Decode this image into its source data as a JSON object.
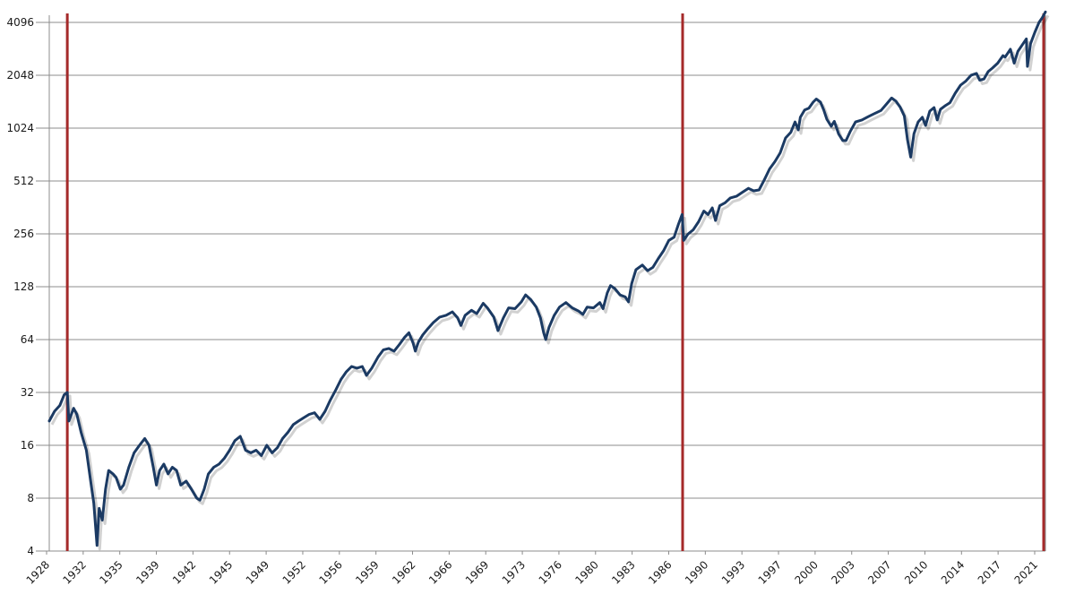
{
  "chart_data": {
    "type": "line",
    "title": "",
    "xlabel": "",
    "ylabel": "",
    "y_scale": "log2",
    "ylim": [
      4,
      4096
    ],
    "xlim": [
      1928.0,
      2021.9
    ],
    "grid": true,
    "y_ticks": [
      {
        "value": 4,
        "label": "4"
      },
      {
        "value": 8,
        "label": "8"
      },
      {
        "value": 16,
        "label": "16"
      },
      {
        "value": 32,
        "label": "32"
      },
      {
        "value": 64,
        "label": "64"
      },
      {
        "value": 128,
        "label": "128"
      },
      {
        "value": 256,
        "label": "256"
      },
      {
        "value": 512,
        "label": "512"
      },
      {
        "value": 1024,
        "label": "1024"
      },
      {
        "value": 2048,
        "label": "2048"
      },
      {
        "value": 4096,
        "label": "4096"
      }
    ],
    "x_ticks": [
      "1928",
      "1932",
      "1935",
      "1939",
      "1942",
      "1945",
      "1949",
      "1952",
      "1956",
      "1959",
      "1962",
      "1966",
      "1969",
      "1973",
      "1976",
      "1980",
      "1983",
      "1986",
      "1990",
      "1993",
      "1997",
      "2000",
      "2003",
      "2007",
      "2010",
      "2014",
      "2017",
      "2021"
    ],
    "colors": {
      "series": "#1b3a63",
      "markers": "#a52a2a"
    },
    "vertical_markers": [
      1929.7,
      1987.7,
      2021.9
    ],
    "series": [
      {
        "values": [
          [
            1928.0,
            22
          ],
          [
            1928.5,
            25
          ],
          [
            1929.0,
            27
          ],
          [
            1929.4,
            31
          ],
          [
            1929.7,
            32
          ],
          [
            1929.85,
            22
          ],
          [
            1930.3,
            26
          ],
          [
            1930.6,
            24
          ],
          [
            1931.0,
            19
          ],
          [
            1931.5,
            15
          ],
          [
            1931.9,
            10
          ],
          [
            1932.2,
            7.5
          ],
          [
            1932.5,
            4.3
          ],
          [
            1932.7,
            7
          ],
          [
            1933.0,
            6
          ],
          [
            1933.3,
            9
          ],
          [
            1933.6,
            11.5
          ],
          [
            1934.0,
            11
          ],
          [
            1934.3,
            10.5
          ],
          [
            1934.7,
            9
          ],
          [
            1935.0,
            9.5
          ],
          [
            1935.5,
            12
          ],
          [
            1936.0,
            14.5
          ],
          [
            1936.5,
            16
          ],
          [
            1937.0,
            17.5
          ],
          [
            1937.4,
            16
          ],
          [
            1937.8,
            12
          ],
          [
            1938.1,
            9.5
          ],
          [
            1938.4,
            11.5
          ],
          [
            1938.8,
            12.5
          ],
          [
            1939.2,
            11
          ],
          [
            1939.6,
            12
          ],
          [
            1940.0,
            11.5
          ],
          [
            1940.4,
            9.5
          ],
          [
            1940.9,
            10
          ],
          [
            1941.4,
            9
          ],
          [
            1941.9,
            8
          ],
          [
            1942.2,
            7.8
          ],
          [
            1942.6,
            9
          ],
          [
            1943.0,
            11
          ],
          [
            1943.5,
            12
          ],
          [
            1944.0,
            12.5
          ],
          [
            1944.5,
            13.5
          ],
          [
            1945.0,
            15
          ],
          [
            1945.5,
            17
          ],
          [
            1946.0,
            18
          ],
          [
            1946.5,
            15
          ],
          [
            1947.0,
            14.5
          ],
          [
            1947.5,
            15
          ],
          [
            1948.0,
            14
          ],
          [
            1948.5,
            16
          ],
          [
            1949.0,
            14.5
          ],
          [
            1949.5,
            15.5
          ],
          [
            1950.0,
            17.5
          ],
          [
            1950.5,
            19
          ],
          [
            1951.0,
            21
          ],
          [
            1951.5,
            22
          ],
          [
            1952.0,
            23
          ],
          [
            1952.5,
            24
          ],
          [
            1953.0,
            24.5
          ],
          [
            1953.5,
            22.5
          ],
          [
            1954.0,
            25
          ],
          [
            1954.5,
            29
          ],
          [
            1955.0,
            33
          ],
          [
            1955.5,
            38
          ],
          [
            1956.0,
            42
          ],
          [
            1956.5,
            45
          ],
          [
            1957.0,
            44
          ],
          [
            1957.5,
            45
          ],
          [
            1957.9,
            40
          ],
          [
            1958.4,
            44
          ],
          [
            1959.0,
            51
          ],
          [
            1959.5,
            56
          ],
          [
            1960.0,
            57
          ],
          [
            1960.5,
            55
          ],
          [
            1961.0,
            60
          ],
          [
            1961.5,
            66
          ],
          [
            1961.9,
            70
          ],
          [
            1962.3,
            61
          ],
          [
            1962.5,
            55
          ],
          [
            1962.8,
            62
          ],
          [
            1963.2,
            68
          ],
          [
            1963.7,
            74
          ],
          [
            1964.2,
            80
          ],
          [
            1964.8,
            86
          ],
          [
            1965.4,
            88
          ],
          [
            1966.0,
            92
          ],
          [
            1966.5,
            85
          ],
          [
            1966.8,
            77
          ],
          [
            1967.2,
            88
          ],
          [
            1967.8,
            94
          ],
          [
            1968.3,
            90
          ],
          [
            1968.9,
            103
          ],
          [
            1969.3,
            97
          ],
          [
            1969.9,
            86
          ],
          [
            1970.3,
            72
          ],
          [
            1970.8,
            85
          ],
          [
            1971.3,
            97
          ],
          [
            1971.9,
            96
          ],
          [
            1972.5,
            105
          ],
          [
            1972.9,
            115
          ],
          [
            1973.4,
            108
          ],
          [
            1973.9,
            98
          ],
          [
            1974.3,
            85
          ],
          [
            1974.6,
            70
          ],
          [
            1974.8,
            64
          ],
          [
            1975.1,
            75
          ],
          [
            1975.6,
            88
          ],
          [
            1976.1,
            98
          ],
          [
            1976.7,
            104
          ],
          [
            1977.3,
            97
          ],
          [
            1977.9,
            93
          ],
          [
            1978.3,
            89
          ],
          [
            1978.7,
            98
          ],
          [
            1979.3,
            97
          ],
          [
            1979.9,
            104
          ],
          [
            1980.2,
            96
          ],
          [
            1980.6,
            118
          ],
          [
            1980.9,
            130
          ],
          [
            1981.3,
            125
          ],
          [
            1981.8,
            115
          ],
          [
            1982.3,
            112
          ],
          [
            1982.6,
            105
          ],
          [
            1982.9,
            133
          ],
          [
            1983.3,
            160
          ],
          [
            1983.9,
            170
          ],
          [
            1984.4,
            158
          ],
          [
            1984.9,
            165
          ],
          [
            1985.4,
            185
          ],
          [
            1985.9,
            205
          ],
          [
            1986.4,
            235
          ],
          [
            1986.9,
            245
          ],
          [
            1987.3,
            290
          ],
          [
            1987.65,
            330
          ],
          [
            1987.8,
            235
          ],
          [
            1988.2,
            255
          ],
          [
            1988.7,
            270
          ],
          [
            1989.2,
            300
          ],
          [
            1989.7,
            345
          ],
          [
            1990.1,
            330
          ],
          [
            1990.5,
            360
          ],
          [
            1990.8,
            305
          ],
          [
            1991.2,
            370
          ],
          [
            1991.7,
            385
          ],
          [
            1992.2,
            410
          ],
          [
            1992.8,
            420
          ],
          [
            1993.3,
            440
          ],
          [
            1993.9,
            465
          ],
          [
            1994.4,
            450
          ],
          [
            1994.9,
            455
          ],
          [
            1995.4,
            520
          ],
          [
            1995.9,
            600
          ],
          [
            1996.4,
            660
          ],
          [
            1996.9,
            740
          ],
          [
            1997.4,
            900
          ],
          [
            1997.9,
            970
          ],
          [
            1998.3,
            1110
          ],
          [
            1998.6,
            1000
          ],
          [
            1998.8,
            1180
          ],
          [
            1999.2,
            1300
          ],
          [
            1999.6,
            1330
          ],
          [
            2000.0,
            1440
          ],
          [
            2000.3,
            1500
          ],
          [
            2000.7,
            1440
          ],
          [
            2001.0,
            1300
          ],
          [
            2001.3,
            1150
          ],
          [
            2001.7,
            1050
          ],
          [
            2002.0,
            1120
          ],
          [
            2002.4,
            950
          ],
          [
            2002.8,
            870
          ],
          [
            2003.1,
            870
          ],
          [
            2003.5,
            980
          ],
          [
            2004.0,
            1110
          ],
          [
            2004.6,
            1140
          ],
          [
            2005.2,
            1190
          ],
          [
            2005.8,
            1240
          ],
          [
            2006.4,
            1290
          ],
          [
            2006.9,
            1400
          ],
          [
            2007.4,
            1520
          ],
          [
            2007.8,
            1460
          ],
          [
            2008.2,
            1350
          ],
          [
            2008.6,
            1200
          ],
          [
            2008.9,
            880
          ],
          [
            2009.2,
            700
          ],
          [
            2009.5,
            950
          ],
          [
            2009.9,
            1110
          ],
          [
            2010.3,
            1180
          ],
          [
            2010.6,
            1060
          ],
          [
            2011.0,
            1280
          ],
          [
            2011.4,
            1340
          ],
          [
            2011.7,
            1140
          ],
          [
            2012.0,
            1310
          ],
          [
            2012.5,
            1380
          ],
          [
            2012.9,
            1430
          ],
          [
            2013.4,
            1620
          ],
          [
            2013.9,
            1800
          ],
          [
            2014.4,
            1900
          ],
          [
            2014.9,
            2050
          ],
          [
            2015.4,
            2100
          ],
          [
            2015.7,
            1920
          ],
          [
            2016.1,
            1950
          ],
          [
            2016.5,
            2150
          ],
          [
            2016.9,
            2250
          ],
          [
            2017.4,
            2400
          ],
          [
            2017.9,
            2650
          ],
          [
            2018.1,
            2600
          ],
          [
            2018.6,
            2880
          ],
          [
            2018.95,
            2400
          ],
          [
            2019.3,
            2800
          ],
          [
            2019.8,
            3100
          ],
          [
            2020.1,
            3300
          ],
          [
            2020.2,
            2300
          ],
          [
            2020.5,
            3100
          ],
          [
            2020.9,
            3600
          ],
          [
            2021.3,
            4100
          ],
          [
            2021.6,
            4350
          ],
          [
            2021.9,
            4700
          ]
        ]
      }
    ]
  }
}
